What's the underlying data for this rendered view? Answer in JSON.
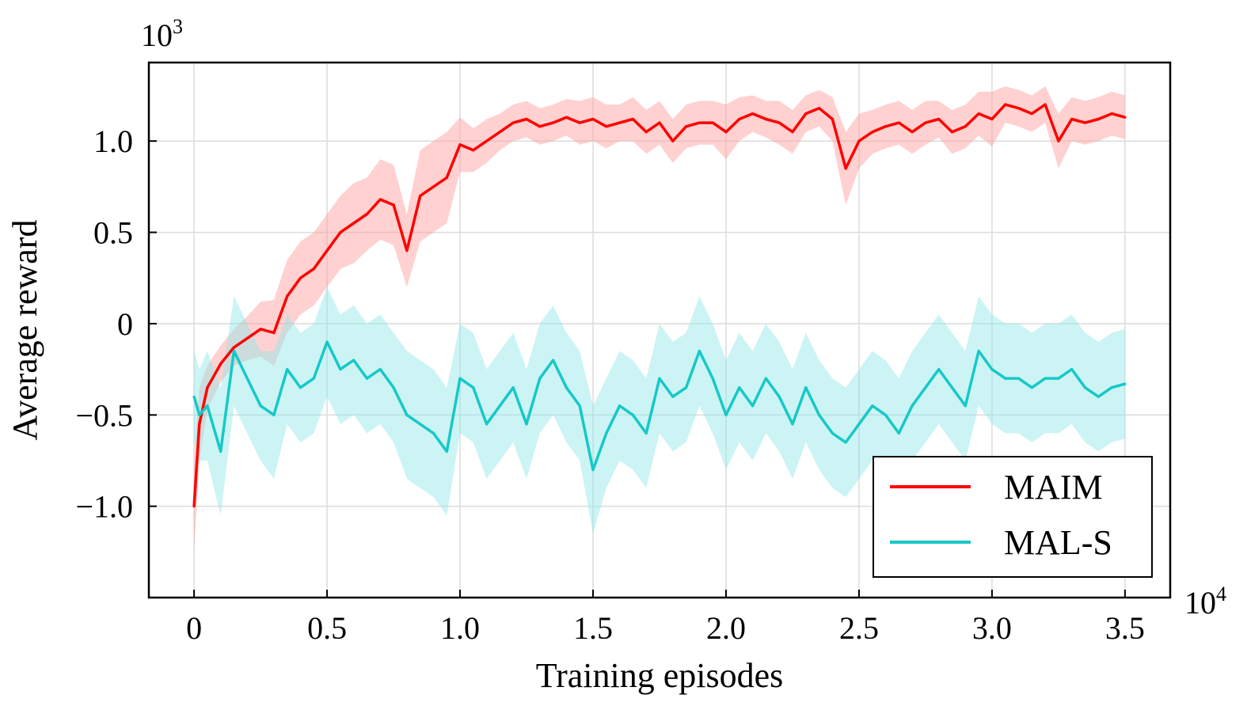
{
  "chart_data": {
    "type": "line",
    "xlabel": "Training episodes",
    "ylabel": "Average reward",
    "x_multiplier_label": "10",
    "x_multiplier_exp": "4",
    "y_multiplier_label": "10",
    "y_multiplier_exp": "3",
    "xlim": [
      -0.17,
      3.67
    ],
    "ylim": [
      -1.5,
      1.43
    ],
    "xticks": [
      0,
      0.5,
      1.0,
      1.5,
      2.0,
      2.5,
      3.0,
      3.5
    ],
    "xtick_labels": [
      "0",
      "0.5",
      "1.0",
      "1.5",
      "2.0",
      "2.5",
      "3.0",
      "3.5"
    ],
    "yticks": [
      -1.0,
      -0.5,
      0,
      0.5,
      1.0
    ],
    "ytick_labels": [
      "−1.0",
      "−0.5",
      "0",
      "0.5",
      "1.0"
    ],
    "grid": true,
    "legend_position": "bottom-right",
    "series": [
      {
        "name": "MAIM",
        "color": "#ff0000",
        "band_color": "#ff9a9a",
        "x": [
          0,
          0.02,
          0.05,
          0.1,
          0.15,
          0.2,
          0.25,
          0.3,
          0.35,
          0.4,
          0.45,
          0.5,
          0.55,
          0.6,
          0.65,
          0.7,
          0.75,
          0.8,
          0.85,
          0.9,
          0.95,
          1.0,
          1.05,
          1.1,
          1.15,
          1.2,
          1.25,
          1.3,
          1.35,
          1.4,
          1.45,
          1.5,
          1.55,
          1.6,
          1.65,
          1.7,
          1.75,
          1.8,
          1.85,
          1.9,
          1.95,
          2.0,
          2.05,
          2.1,
          2.15,
          2.2,
          2.25,
          2.3,
          2.35,
          2.4,
          2.45,
          2.5,
          2.55,
          2.6,
          2.65,
          2.7,
          2.75,
          2.8,
          2.85,
          2.9,
          2.95,
          3.0,
          3.05,
          3.1,
          3.15,
          3.2,
          3.25,
          3.3,
          3.35,
          3.4,
          3.45,
          3.5
        ],
        "y": [
          -1.0,
          -0.55,
          -0.35,
          -0.22,
          -0.13,
          -0.08,
          -0.03,
          -0.05,
          0.15,
          0.25,
          0.3,
          0.4,
          0.5,
          0.55,
          0.6,
          0.68,
          0.65,
          0.4,
          0.7,
          0.75,
          0.8,
          0.98,
          0.95,
          1.0,
          1.05,
          1.1,
          1.12,
          1.08,
          1.1,
          1.13,
          1.1,
          1.12,
          1.08,
          1.1,
          1.12,
          1.05,
          1.1,
          1.0,
          1.08,
          1.1,
          1.1,
          1.05,
          1.12,
          1.15,
          1.12,
          1.1,
          1.05,
          1.15,
          1.18,
          1.12,
          0.85,
          1.0,
          1.05,
          1.08,
          1.1,
          1.05,
          1.1,
          1.12,
          1.05,
          1.08,
          1.15,
          1.12,
          1.2,
          1.18,
          1.15,
          1.2,
          1.0,
          1.12,
          1.1,
          1.12,
          1.15,
          1.13
        ],
        "band": [
          0.25,
          0.2,
          0.12,
          0.1,
          0.1,
          0.12,
          0.15,
          0.18,
          0.2,
          0.2,
          0.2,
          0.2,
          0.2,
          0.22,
          0.2,
          0.22,
          0.22,
          0.2,
          0.25,
          0.25,
          0.25,
          0.15,
          0.12,
          0.12,
          0.1,
          0.1,
          0.1,
          0.1,
          0.1,
          0.1,
          0.12,
          0.12,
          0.12,
          0.1,
          0.12,
          0.12,
          0.12,
          0.12,
          0.12,
          0.12,
          0.12,
          0.15,
          0.12,
          0.1,
          0.1,
          0.12,
          0.12,
          0.1,
          0.1,
          0.12,
          0.2,
          0.15,
          0.12,
          0.12,
          0.12,
          0.12,
          0.12,
          0.1,
          0.12,
          0.12,
          0.12,
          0.15,
          0.1,
          0.1,
          0.1,
          0.1,
          0.15,
          0.12,
          0.12,
          0.12,
          0.12,
          0.12
        ]
      },
      {
        "name": "MAL-S",
        "color": "#17c8c8",
        "band_color": "#8fe6e6",
        "x": [
          0,
          0.02,
          0.05,
          0.1,
          0.15,
          0.2,
          0.25,
          0.3,
          0.35,
          0.4,
          0.45,
          0.5,
          0.55,
          0.6,
          0.65,
          0.7,
          0.75,
          0.8,
          0.85,
          0.9,
          0.95,
          1.0,
          1.05,
          1.1,
          1.15,
          1.2,
          1.25,
          1.3,
          1.35,
          1.4,
          1.45,
          1.5,
          1.55,
          1.6,
          1.65,
          1.7,
          1.75,
          1.8,
          1.85,
          1.9,
          1.95,
          2.0,
          2.05,
          2.1,
          2.15,
          2.2,
          2.25,
          2.3,
          2.35,
          2.4,
          2.45,
          2.5,
          2.55,
          2.6,
          2.65,
          2.7,
          2.75,
          2.8,
          2.85,
          2.9,
          2.95,
          3.0,
          3.05,
          3.1,
          3.15,
          3.2,
          3.25,
          3.3,
          3.35,
          3.4,
          3.45,
          3.5
        ],
        "y": [
          -0.4,
          -0.5,
          -0.45,
          -0.7,
          -0.15,
          -0.3,
          -0.45,
          -0.5,
          -0.25,
          -0.35,
          -0.3,
          -0.1,
          -0.25,
          -0.2,
          -0.3,
          -0.25,
          -0.35,
          -0.5,
          -0.55,
          -0.6,
          -0.7,
          -0.3,
          -0.35,
          -0.55,
          -0.45,
          -0.35,
          -0.55,
          -0.3,
          -0.2,
          -0.35,
          -0.45,
          -0.8,
          -0.6,
          -0.45,
          -0.5,
          -0.6,
          -0.3,
          -0.4,
          -0.35,
          -0.15,
          -0.3,
          -0.5,
          -0.35,
          -0.45,
          -0.3,
          -0.4,
          -0.55,
          -0.35,
          -0.5,
          -0.6,
          -0.65,
          -0.55,
          -0.45,
          -0.5,
          -0.6,
          -0.45,
          -0.35,
          -0.25,
          -0.35,
          -0.45,
          -0.15,
          -0.25,
          -0.3,
          -0.3,
          -0.35,
          -0.3,
          -0.3,
          -0.25,
          -0.35,
          -0.4,
          -0.35,
          -0.33
        ],
        "band": [
          0.25,
          0.25,
          0.3,
          0.35,
          0.3,
          0.3,
          0.3,
          0.35,
          0.3,
          0.3,
          0.3,
          0.3,
          0.3,
          0.3,
          0.3,
          0.3,
          0.3,
          0.35,
          0.35,
          0.35,
          0.35,
          0.3,
          0.3,
          0.3,
          0.3,
          0.3,
          0.3,
          0.3,
          0.3,
          0.3,
          0.3,
          0.35,
          0.3,
          0.3,
          0.3,
          0.3,
          0.3,
          0.3,
          0.3,
          0.3,
          0.3,
          0.3,
          0.3,
          0.3,
          0.3,
          0.3,
          0.3,
          0.3,
          0.3,
          0.3,
          0.3,
          0.3,
          0.3,
          0.3,
          0.3,
          0.3,
          0.3,
          0.3,
          0.3,
          0.3,
          0.3,
          0.3,
          0.3,
          0.3,
          0.3,
          0.3,
          0.3,
          0.3,
          0.3,
          0.3,
          0.3,
          0.3
        ]
      }
    ]
  }
}
